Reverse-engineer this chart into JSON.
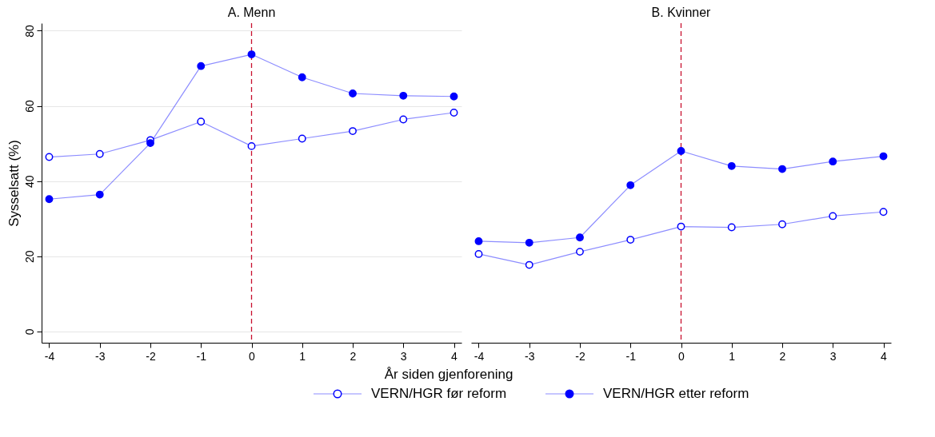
{
  "chart_data": [
    {
      "type": "line",
      "title": "A. Menn",
      "xlabel": "År siden gjenforening",
      "ylabel": "Sysselsatt (%)",
      "x": [
        -4,
        -3,
        -2,
        -1,
        0,
        1,
        2,
        3,
        4
      ],
      "xlim": [
        -4.15,
        4.15
      ],
      "xticks": [
        -4,
        -3,
        -2,
        -1,
        0,
        1,
        2,
        3,
        4
      ],
      "ylim": [
        -3,
        82
      ],
      "yticks": [
        0,
        20,
        40,
        60,
        80
      ],
      "grid": "y",
      "legend": "bottom",
      "marker": "circle",
      "series": [
        {
          "name": "VERN/HGR før reform",
          "color": "#0000ff",
          "values": [
            46.4,
            47.2,
            50.9,
            55.8,
            49.3,
            51.3,
            53.3,
            56.4,
            58.2
          ]
        },
        {
          "name": "VERN/HGR etter reform",
          "color": "#0000ff",
          "values": [
            35.2,
            36.4,
            50.1,
            70.6,
            73.7,
            67.6,
            63.3,
            62.7,
            62.5
          ]
        }
      ],
      "ref_lines": [
        {
          "axis": "x",
          "value": 0,
          "color": "#c8102e",
          "line_style": "dashed"
        }
      ]
    },
    {
      "type": "line",
      "title": "B. Kvinner",
      "x": [
        -4,
        -3,
        -2,
        -1,
        0,
        1,
        2,
        3,
        4
      ],
      "xlim": [
        -4.15,
        4.15
      ],
      "xticks": [
        -4,
        -3,
        -2,
        -1,
        0,
        1,
        2,
        3,
        4
      ],
      "ylim": [
        -3,
        82
      ],
      "tick_labels": "x",
      "grid": "y",
      "marker": "circle",
      "series": [
        {
          "color": "#0000ff",
          "values": [
            20.6,
            17.7,
            21.2,
            24.4,
            27.9,
            27.7,
            28.5,
            30.7,
            31.8
          ]
        },
        {
          "color": "#0000ff",
          "values": [
            24.0,
            23.6,
            25.0,
            38.9,
            48.0,
            44.0,
            43.2,
            45.2,
            46.6
          ]
        }
      ],
      "ref_lines": [
        {
          "axis": "x",
          "value": 0,
          "color": "#c8102e",
          "line_style": "dashed"
        }
      ]
    }
  ]
}
